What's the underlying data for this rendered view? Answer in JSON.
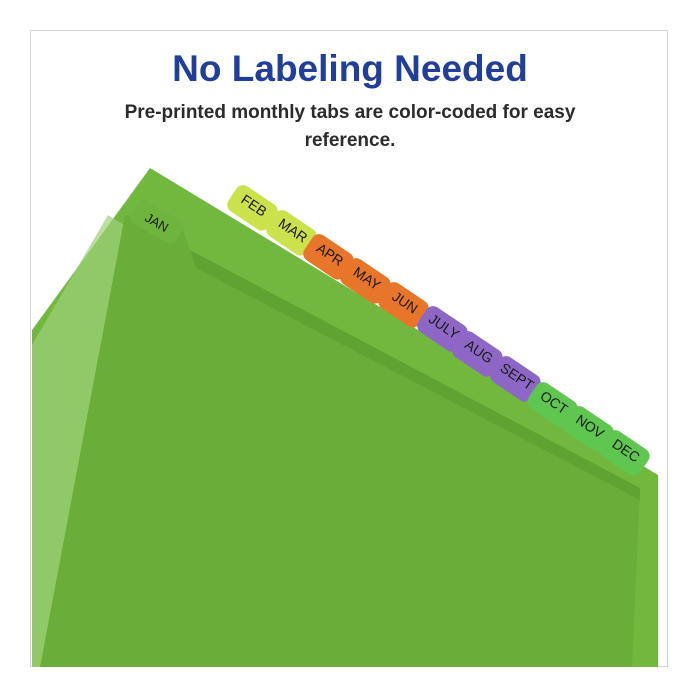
{
  "headline": "No Labeling Needed",
  "subheadline": "Pre-printed monthly tabs are color-coded for easy reference.",
  "colors": {
    "title": "#213f9a",
    "folder": "#6db23c",
    "folder_dark": "#5fa431",
    "tab_yellow_green": "#cbe24c",
    "tab_orange": "#e8762a",
    "tab_purple": "#8d66c6",
    "tab_green": "#5fc650"
  },
  "front_tab": {
    "label": "JAN"
  },
  "tabs": [
    {
      "label": "FEB",
      "color": "#cbe24c"
    },
    {
      "label": "MAR",
      "color": "#cbe24c"
    },
    {
      "label": "APR",
      "color": "#e8762a"
    },
    {
      "label": "MAY",
      "color": "#e8762a"
    },
    {
      "label": "JUN",
      "color": "#e8762a"
    },
    {
      "label": "JULY",
      "color": "#8d66c6"
    },
    {
      "label": "AUG",
      "color": "#8d66c6"
    },
    {
      "label": "SEPT",
      "color": "#8d66c6"
    },
    {
      "label": "OCT",
      "color": "#5fc650"
    },
    {
      "label": "NOV",
      "color": "#5fc650"
    },
    {
      "label": "DEC",
      "color": "#5fc650"
    }
  ]
}
